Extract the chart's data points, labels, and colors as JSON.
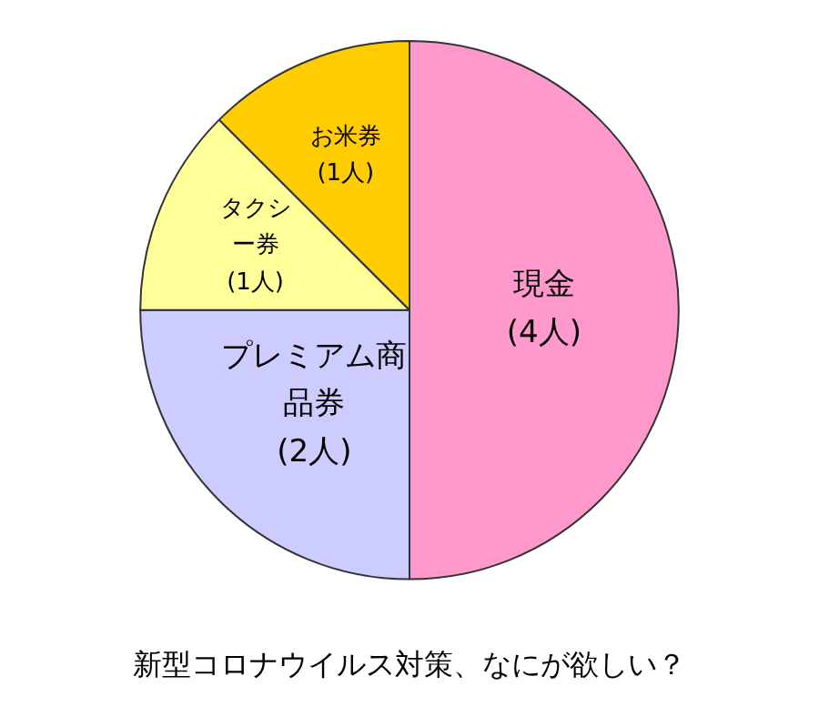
{
  "chart_data": {
    "type": "pie",
    "title": "新型コロナウイルス対策、なにが欲しい？",
    "categories": [
      "現金",
      "プレミアム商品券",
      "タクシー券",
      "お米券"
    ],
    "values": [
      4,
      2,
      1,
      1
    ],
    "value_labels": [
      "(4人)",
      "(2人)",
      "(1人)",
      "(1人)"
    ],
    "colors": [
      "#ff99cc",
      "#ccccff",
      "#ffff99",
      "#ffcc00"
    ],
    "legend": false
  }
}
